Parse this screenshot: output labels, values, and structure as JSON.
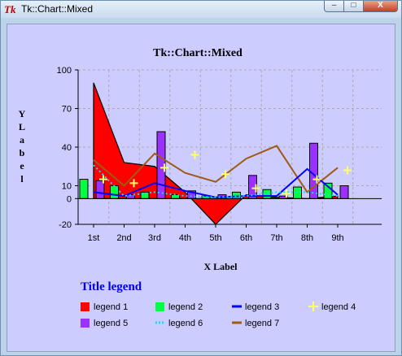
{
  "window": {
    "title": "Tk::Chart::Mixed",
    "icon": "tk-feather-icon",
    "controls": {
      "minimize": "–",
      "maximize": "□",
      "close": "X"
    }
  },
  "chart_data": {
    "type": "mixed",
    "title": "Tk::Chart::Mixed",
    "xlabel": "X Label",
    "ylabel": "YLabel",
    "categories": [
      "1st",
      "2nd",
      "3rd",
      "4th",
      "5th",
      "6th",
      "7th",
      "8th",
      "9th"
    ],
    "yticks": [
      100,
      70,
      40,
      10,
      0,
      -20
    ],
    "ylim": [
      -20,
      100
    ],
    "grid": true,
    "legend_title": "Title legend",
    "legend_placement": "bottom",
    "series": [
      {
        "name": "legend 1",
        "type": "area",
        "color": "#ff0000",
        "values": [
          90,
          28,
          25,
          5,
          -20,
          3,
          1,
          0,
          2
        ]
      },
      {
        "name": "legend 2",
        "type": "bars",
        "color": "#00ff40",
        "values": [
          15,
          10,
          5,
          3,
          2,
          5,
          7,
          9,
          12
        ]
      },
      {
        "name": "legend 3",
        "type": "line",
        "color": "#0000ff",
        "values": [
          5,
          2,
          12,
          6,
          1,
          2,
          2,
          23,
          3
        ]
      },
      {
        "name": "legend 4",
        "type": "points",
        "color": "#ffff66",
        "values": [
          15,
          12,
          24,
          34,
          19,
          8,
          4,
          15,
          22
        ]
      },
      {
        "name": "legend 5",
        "type": "bars",
        "color": "#9b30ff",
        "values": [
          14,
          3,
          52,
          6,
          3,
          18,
          2,
          43,
          10
        ]
      },
      {
        "name": "legend 6",
        "type": "dashes",
        "color": "#00e5ff",
        "values": [
          26,
          2,
          5,
          2,
          1,
          2,
          5,
          5,
          2
        ]
      },
      {
        "name": "legend 7",
        "type": "line",
        "color": "#a05a14",
        "values": [
          30,
          10,
          35,
          20,
          13,
          31,
          41,
          5,
          24
        ]
      }
    ]
  }
}
